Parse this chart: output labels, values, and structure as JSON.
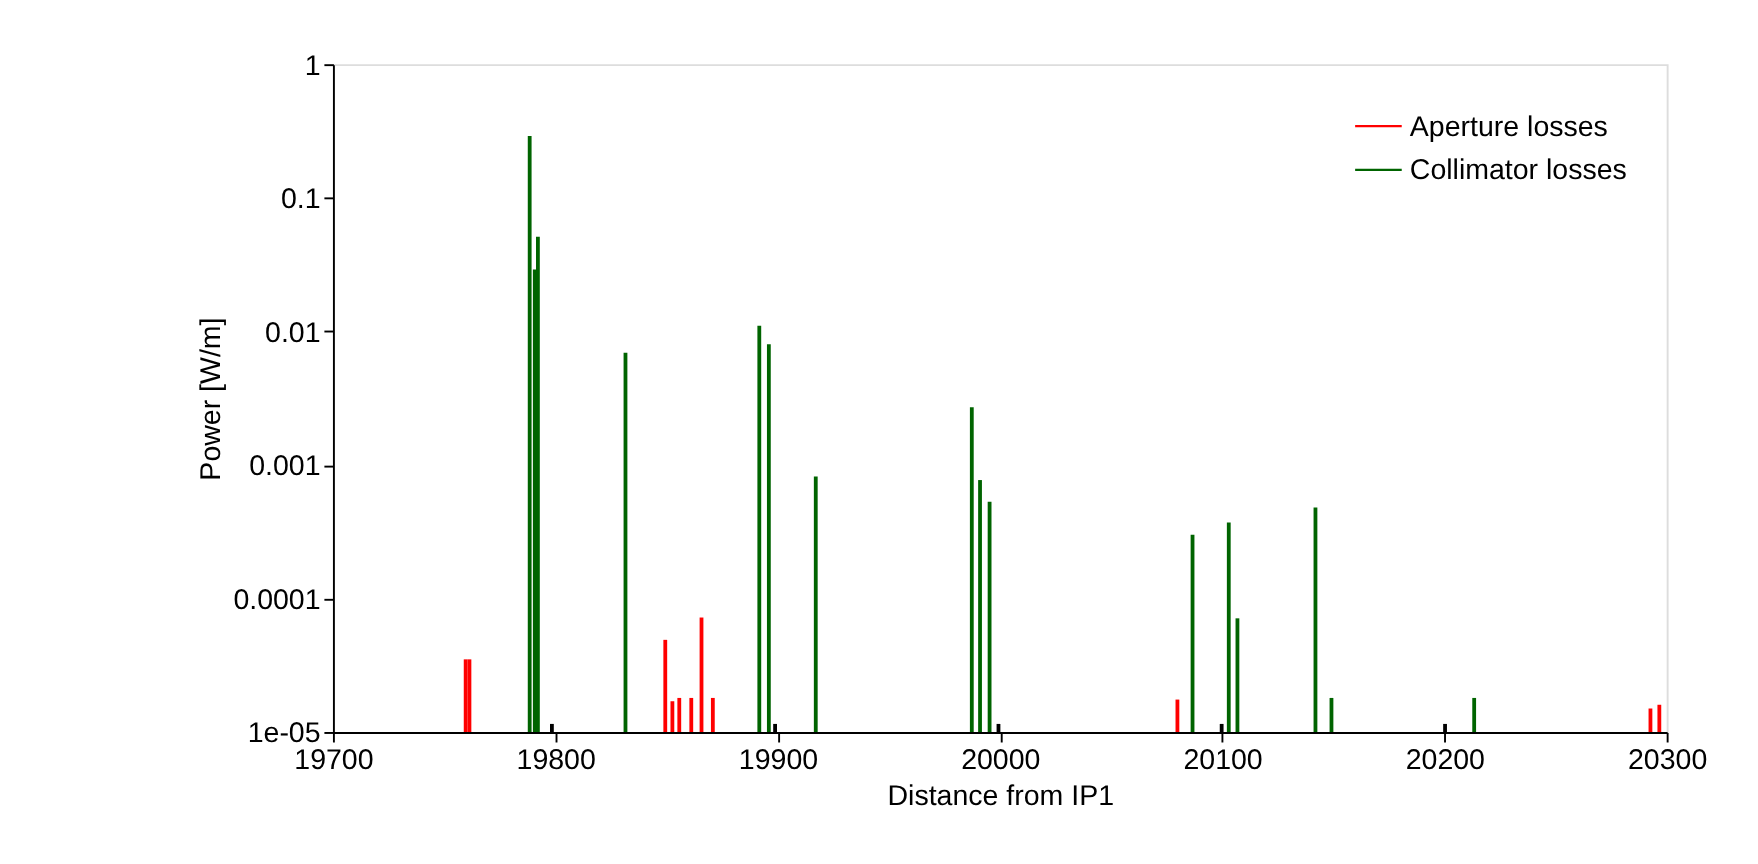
{
  "chart_data": {
    "type": "bar",
    "xlabel": "Distance from IP1",
    "ylabel": "Power [W/m]",
    "log": "y",
    "grid": false,
    "legend": "top right",
    "xlim": [
      19700,
      20300
    ],
    "xticks": [
      19700,
      19800,
      19900,
      20000,
      20100,
      20200,
      20300
    ],
    "ylim": [
      1e-05,
      1
    ],
    "yticks": [
      {
        "value": 1e-05,
        "label": "1e-05"
      },
      0.0001,
      0.001,
      0.01,
      0.1,
      1
    ],
    "series": [
      {
        "name": "Aperture losses",
        "color": "#ff0000",
        "x": [
          19759.7,
          19761.4,
          19849.5,
          19852.7,
          19855.8,
          19861.2,
          19865.8,
          19870.9,
          20079.9,
          20292.7,
          20296.7
        ],
        "values": [
          3.5e-05,
          3.5e-05,
          4.9e-05,
          1.7e-05,
          1.8e-05,
          1.8e-05,
          7.2e-05,
          1.8e-05,
          1.75e-05,
          1.5e-05,
          1.6e-05
        ]
      },
      {
        "name": "Collimator losses",
        "color": "#006400",
        "x": [
          19788.5,
          19790.8,
          19792.2,
          19831.6,
          19891.8,
          19896.1,
          19917.2,
          19987.4,
          19991.1,
          19995.4,
          20086.7,
          20103.0,
          20106.9,
          20142.0,
          20149.2,
          20213.4
        ],
        "values": [
          0.29,
          0.029,
          0.051,
          0.0069,
          0.011,
          0.008,
          0.00082,
          0.0027,
          0.00077,
          0.00053,
          0.0003,
          0.00037,
          7.1e-05,
          0.00048,
          1.8e-05,
          1.8e-05
        ]
      },
      {
        "color": "#000000",
        "x": [
          19798.5,
          19898.9,
          19999.4,
          20099.8,
          20200.3
        ],
        "values": [
          1.15e-05,
          1.15e-05,
          1.15e-05,
          1.15e-05,
          1.15e-05
        ]
      }
    ]
  }
}
